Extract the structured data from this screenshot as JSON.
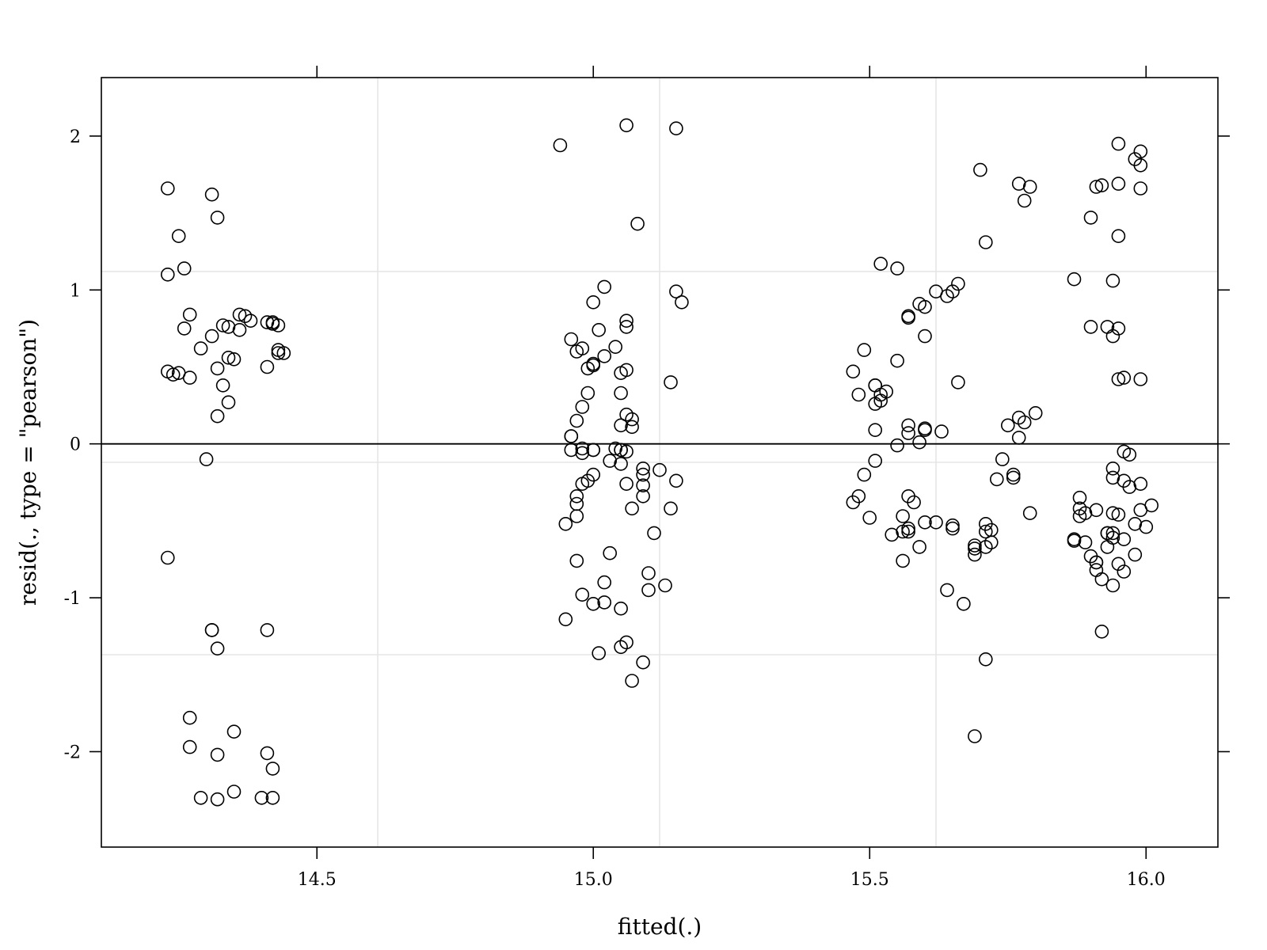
{
  "chart_data": {
    "type": "scatter",
    "title": "",
    "xlabel": "fitted(.)",
    "ylabel": "resid(., type = \"pearson\")",
    "xlim": [
      14.11,
      16.13
    ],
    "ylim": [
      -2.62,
      2.38
    ],
    "xticks": [
      14.5,
      15.0,
      15.5,
      16.0
    ],
    "xtick_labels": [
      "14.5",
      "15.0",
      "15.5",
      "16.0"
    ],
    "yticks": [
      -2,
      -1,
      0,
      1,
      2
    ],
    "ytick_labels": [
      "-2",
      "-1",
      "0",
      "1",
      "2"
    ],
    "grid_x": [
      14.61,
      15.12,
      15.62
    ],
    "grid_y": [
      -1.37,
      -0.12,
      1.12
    ],
    "reference_line_y": 0,
    "groups": [
      {
        "x": [
          14.23,
          14.23,
          14.25,
          14.26,
          14.27,
          14.26,
          14.25,
          14.23,
          14.24,
          14.27,
          14.29,
          14.31,
          14.32,
          14.33,
          14.34,
          14.36,
          14.37,
          14.38,
          14.41,
          14.42,
          14.43,
          14.43,
          14.44,
          14.31,
          14.32,
          14.34,
          14.35,
          14.36,
          14.33,
          14.34,
          14.41,
          14.42,
          14.43,
          14.32,
          14.3,
          14.23,
          14.31,
          14.31,
          14.41,
          14.32,
          14.27,
          14.27,
          14.32,
          14.35,
          14.41,
          14.42,
          14.29,
          14.32,
          14.35,
          14.4,
          14.42
        ],
        "y": [
          1.66,
          1.1,
          1.35,
          1.14,
          0.84,
          0.75,
          0.46,
          0.47,
          0.45,
          0.43,
          0.62,
          0.7,
          0.49,
          0.77,
          0.76,
          0.84,
          0.83,
          0.8,
          0.79,
          0.78,
          0.61,
          0.59,
          0.59,
          1.62,
          1.47,
          0.56,
          0.55,
          0.74,
          0.38,
          0.27,
          0.5,
          0.79,
          0.77,
          0.18,
          -0.1,
          -0.74,
          -1.21,
          -1.21,
          -1.21,
          -1.33,
          -1.78,
          -1.97,
          -2.02,
          -1.87,
          -2.01,
          -2.11,
          -2.3,
          -2.31,
          -2.26,
          -2.3,
          -2.3
        ]
      },
      {
        "x": [
          14.94,
          15.06,
          15.15,
          15.08,
          15.02,
          15.0,
          15.15,
          15.16,
          15.06,
          15.01,
          15.06,
          15.14,
          14.96,
          14.98,
          14.97,
          15.02,
          15.0,
          14.99,
          15.0,
          15.04,
          15.06,
          15.05,
          14.99,
          14.98,
          14.97,
          15.05,
          15.06,
          15.05,
          15.07,
          15.07,
          14.96,
          14.96,
          14.98,
          14.96,
          15.0,
          14.98,
          15.0,
          15.04,
          15.05,
          15.05,
          15.06,
          15.03,
          15.05,
          15.09,
          15.12,
          15.09,
          15.09,
          15.15,
          14.99,
          15.0,
          14.98,
          15.06,
          15.09,
          14.97,
          14.97,
          14.97,
          14.95,
          15.07,
          15.14,
          15.11,
          14.97,
          15.03,
          15.1,
          15.02,
          15.1,
          15.13,
          14.98,
          15.0,
          15.02,
          15.05,
          14.95,
          15.06,
          15.01,
          15.05,
          15.09,
          15.07
        ],
        "y": [
          1.94,
          2.07,
          2.05,
          1.43,
          1.02,
          0.92,
          0.99,
          0.92,
          0.8,
          0.74,
          0.76,
          0.4,
          0.68,
          0.62,
          0.6,
          0.57,
          0.52,
          0.49,
          0.51,
          0.63,
          0.48,
          0.46,
          0.33,
          0.24,
          0.15,
          0.33,
          0.19,
          0.12,
          0.16,
          0.11,
          0.05,
          0.05,
          -0.03,
          -0.04,
          -0.04,
          -0.06,
          -0.04,
          -0.03,
          -0.04,
          -0.04,
          -0.05,
          -0.11,
          -0.13,
          -0.16,
          -0.17,
          -0.2,
          -0.27,
          -0.24,
          -0.24,
          -0.2,
          -0.26,
          -0.26,
          -0.34,
          -0.34,
          -0.39,
          -0.47,
          -0.52,
          -0.42,
          -0.42,
          -0.58,
          -0.76,
          -0.71,
          -0.84,
          -0.9,
          -0.95,
          -0.92,
          -0.98,
          -1.04,
          -1.03,
          -1.07,
          -1.14,
          -1.29,
          -1.36,
          -1.32,
          -1.42,
          -1.54
        ]
      },
      {
        "x": [
          15.52,
          15.55,
          15.59,
          15.62,
          15.6,
          15.57,
          15.57,
          15.6,
          15.64,
          15.66,
          15.49,
          15.47,
          15.51,
          15.51,
          15.52,
          15.48,
          15.52,
          15.51,
          15.55,
          15.53,
          15.51,
          15.55,
          15.57,
          15.57,
          15.59,
          15.6,
          15.6,
          15.63,
          15.66,
          15.51,
          15.49,
          15.48,
          15.47,
          15.5,
          15.54,
          15.57,
          15.58,
          15.56,
          15.56,
          15.57,
          15.59,
          15.6,
          15.62,
          15.65,
          15.57,
          15.56,
          15.65,
          15.69,
          15.64,
          15.67,
          15.69,
          15.69,
          15.71,
          15.71,
          15.72,
          15.71,
          15.72,
          15.73,
          15.74,
          15.77,
          15.78,
          15.8,
          15.75,
          15.77,
          15.76,
          15.76,
          15.79,
          15.79,
          15.78,
          15.77,
          15.7,
          15.71,
          15.65,
          15.71,
          15.69
        ],
        "y": [
          1.17,
          1.14,
          0.91,
          0.99,
          0.89,
          0.83,
          0.82,
          0.7,
          0.96,
          1.04,
          0.61,
          0.47,
          0.38,
          0.38,
          0.32,
          0.32,
          0.28,
          0.26,
          0.54,
          0.34,
          0.09,
          -0.01,
          0.12,
          0.07,
          0.01,
          0.1,
          0.09,
          0.08,
          0.4,
          -0.11,
          -0.2,
          -0.34,
          -0.38,
          -0.48,
          -0.59,
          -0.34,
          -0.38,
          -0.47,
          -0.57,
          -0.57,
          -0.67,
          -0.51,
          -0.51,
          -0.53,
          -0.55,
          -0.76,
          -0.55,
          -0.66,
          -0.95,
          -1.04,
          -0.68,
          -0.72,
          -0.52,
          -0.57,
          -0.56,
          -0.67,
          -0.64,
          -0.23,
          -0.1,
          0.17,
          0.14,
          0.2,
          0.12,
          0.04,
          -0.22,
          -0.2,
          -0.45,
          1.67,
          1.58,
          1.69,
          1.78,
          1.31,
          0.99,
          -1.4,
          -1.9
        ]
      },
      {
        "x": [
          15.87,
          15.9,
          15.92,
          15.91,
          15.94,
          15.95,
          15.95,
          15.99,
          15.99,
          15.95,
          15.98,
          15.99,
          15.95,
          15.94,
          15.93,
          15.95,
          15.9,
          15.96,
          15.99,
          15.96,
          15.97,
          15.94,
          15.94,
          15.96,
          15.99,
          15.97,
          16.01,
          15.99,
          15.98,
          15.94,
          15.95,
          15.94,
          15.93,
          15.94,
          15.96,
          15.87,
          15.87,
          15.88,
          15.88,
          15.89,
          15.88,
          15.91,
          15.89,
          15.9,
          15.91,
          15.92,
          15.94,
          15.91,
          15.95,
          15.93,
          15.98,
          16.0,
          15.96,
          15.91,
          15.92,
          15.93
        ],
        "y": [
          1.07,
          1.47,
          1.68,
          1.67,
          1.06,
          1.95,
          1.69,
          1.9,
          1.81,
          1.35,
          1.85,
          1.66,
          0.75,
          0.7,
          0.76,
          0.42,
          0.76,
          0.43,
          0.42,
          -0.05,
          -0.07,
          -0.16,
          -0.22,
          -0.24,
          -0.26,
          -0.28,
          -0.4,
          -0.43,
          -0.52,
          -0.45,
          -0.46,
          -0.58,
          -0.58,
          -0.61,
          -0.62,
          -0.63,
          -0.62,
          -0.35,
          -0.47,
          -0.45,
          -0.42,
          -0.43,
          -0.64,
          -0.73,
          -0.77,
          -0.88,
          -0.92,
          -0.77,
          -0.78,
          -0.67,
          -0.72,
          -0.54,
          -0.83,
          -0.82,
          -1.22,
          -0.58
        ]
      }
    ]
  }
}
